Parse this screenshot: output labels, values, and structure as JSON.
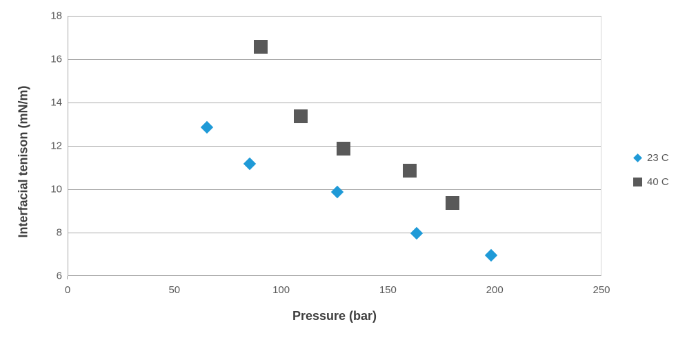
{
  "chart_data": {
    "type": "scatter",
    "title": "",
    "xlabel": "Pressure (bar)",
    "ylabel": "Interfacial tenison (mN/m)",
    "xlim": [
      0,
      250
    ],
    "ylim": [
      6,
      18
    ],
    "xticks": [
      0,
      50,
      100,
      150,
      200,
      250
    ],
    "yticks": [
      6,
      8,
      10,
      12,
      14,
      16,
      18
    ],
    "grid": "horizontal",
    "legend_position": "right",
    "series": [
      {
        "name": "23 C",
        "marker": "diamond",
        "color": "#1F9AD7",
        "points": [
          [
            65,
            12.9
          ],
          [
            85,
            11.2
          ],
          [
            126,
            9.9
          ],
          [
            163,
            8.0
          ],
          [
            198,
            7.0
          ]
        ]
      },
      {
        "name": "40 C",
        "marker": "square",
        "color": "#595959",
        "points": [
          [
            90,
            16.6
          ],
          [
            109,
            13.4
          ],
          [
            129,
            11.9
          ],
          [
            160,
            10.9
          ],
          [
            180,
            9.4
          ]
        ]
      }
    ]
  },
  "colors": {
    "background": "#ffffff",
    "gridline": "#a9a9a9",
    "axis_line": "#a6a6a6",
    "tick_label": "#595959",
    "axis_title": "#3f3f3f",
    "legend_text": "#595959"
  }
}
